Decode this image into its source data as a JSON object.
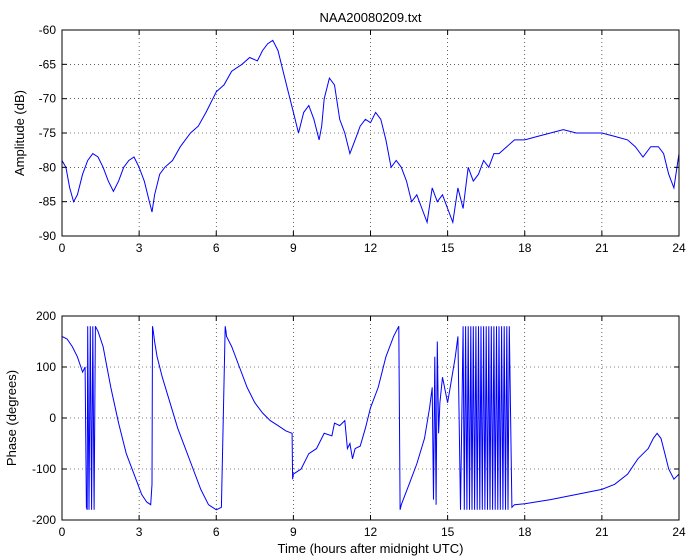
{
  "figure": {
    "title": "NAA20080209.txt"
  },
  "chart_data": [
    {
      "type": "line",
      "title": "NAA20080209.txt",
      "xlabel": "",
      "ylabel": "Amplitude (dB)",
      "xlim": [
        0,
        24
      ],
      "ylim": [
        -90,
        -60
      ],
      "xticks": [
        0,
        3,
        6,
        9,
        12,
        15,
        18,
        21,
        24
      ],
      "yticks": [
        -90,
        -85,
        -80,
        -75,
        -70,
        -65,
        -60
      ],
      "grid": true,
      "line_color": "#0000ff",
      "series": [
        {
          "x": [
            0,
            0.15,
            0.3,
            0.45,
            0.6,
            0.8,
            1.0,
            1.2,
            1.4,
            1.6,
            1.8,
            2.0,
            2.2,
            2.4,
            2.6,
            2.8,
            3.0,
            3.2,
            3.4,
            3.5,
            3.6,
            3.8,
            4.0,
            4.3,
            4.6,
            5.0,
            5.3,
            5.6,
            6.0,
            6.3,
            6.6,
            7.0,
            7.3,
            7.6,
            7.8,
            8.0,
            8.2,
            8.4,
            8.6,
            8.8,
            9.0,
            9.2,
            9.4,
            9.6,
            9.8,
            10.0,
            10.1,
            10.2,
            10.4,
            10.6,
            10.8,
            11.0,
            11.2,
            11.4,
            11.6,
            11.8,
            12.0,
            12.2,
            12.4,
            12.6,
            12.8,
            13.0,
            13.2,
            13.4,
            13.6,
            13.8,
            14.0,
            14.2,
            14.4,
            14.6,
            14.8,
            15.0,
            15.2,
            15.4,
            15.6,
            15.8,
            16.0,
            16.2,
            16.4,
            16.6,
            16.8,
            17.0,
            17.3,
            17.6,
            18.0,
            18.5,
            19.0,
            19.5,
            20.0,
            20.5,
            21.0,
            21.5,
            22.0,
            22.3,
            22.6,
            22.9,
            23.2,
            23.4,
            23.6,
            23.8,
            24.0
          ],
          "y": [
            -79,
            -80,
            -83,
            -85,
            -84,
            -81,
            -79,
            -78,
            -78.5,
            -80,
            -82,
            -83.5,
            -82,
            -80,
            -79,
            -78.5,
            -80,
            -82,
            -85,
            -86.5,
            -84,
            -81,
            -80,
            -79,
            -77,
            -75,
            -74,
            -72,
            -69,
            -68,
            -66,
            -65,
            -64,
            -64.5,
            -63,
            -62,
            -61.5,
            -63,
            -66,
            -69,
            -72,
            -75,
            -72,
            -71,
            -73,
            -76,
            -74,
            -70,
            -67,
            -68,
            -73,
            -75,
            -78,
            -76,
            -74,
            -73,
            -73.5,
            -72,
            -73,
            -76,
            -80,
            -79,
            -80,
            -82,
            -85,
            -84,
            -86,
            -88,
            -83,
            -85,
            -84,
            -86,
            -88,
            -83,
            -86,
            -80,
            -82,
            -81,
            -79,
            -80,
            -78,
            -78,
            -77,
            -76,
            -76,
            -75.5,
            -75,
            -74.5,
            -75,
            -75,
            -75,
            -75.5,
            -76,
            -77,
            -78.5,
            -77,
            -77,
            -78,
            -81,
            -83,
            -78
          ]
        }
      ]
    },
    {
      "type": "line",
      "title": "",
      "xlabel": "Time (hours after midnight UTC)",
      "ylabel": "Phase (degrees)",
      "xlim": [
        0,
        24
      ],
      "ylim": [
        -200,
        200
      ],
      "xticks": [
        0,
        3,
        6,
        9,
        12,
        15,
        18,
        21,
        24
      ],
      "yticks": [
        -200,
        -100,
        0,
        100,
        200
      ],
      "grid": true,
      "line_color": "#0000ff",
      "series": [
        {
          "x": [
            0,
            0.2,
            0.4,
            0.6,
            0.8,
            0.9,
            0.95,
            0.98,
            1.0,
            1.05,
            1.1,
            1.15,
            1.2,
            1.25,
            1.3,
            1.35,
            1.4,
            1.6,
            1.9,
            2.2,
            2.5,
            2.8,
            3.1,
            3.3,
            3.45,
            3.5,
            3.52,
            3.55,
            3.6,
            3.7,
            3.9,
            4.2,
            4.5,
            4.8,
            5.1,
            5.4,
            5.7,
            6.0,
            6.2,
            6.35,
            6.38,
            6.4,
            6.6,
            6.9,
            7.2,
            7.5,
            7.8,
            8.1,
            8.4,
            8.7,
            8.95,
            8.97,
            9.0,
            9.3,
            9.6,
            9.9,
            10.2,
            10.5,
            10.6,
            10.8,
            11.0,
            11.1,
            11.2,
            11.3,
            11.4,
            11.6,
            11.8,
            12.0,
            12.3,
            12.6,
            12.9,
            13.1,
            13.15,
            13.2,
            13.5,
            13.8,
            14.1,
            14.3,
            14.4,
            14.45,
            14.5,
            14.55,
            14.6,
            14.65,
            14.7,
            14.8,
            15.0,
            15.1,
            15.3,
            15.4,
            15.5,
            15.6,
            15.65,
            15.7,
            15.75,
            15.8,
            15.85,
            15.9,
            15.95,
            16.0,
            16.05,
            16.1,
            16.15,
            16.2,
            16.25,
            16.3,
            16.35,
            16.4,
            16.45,
            16.5,
            16.55,
            16.6,
            16.65,
            16.7,
            16.75,
            16.8,
            16.85,
            16.9,
            16.95,
            17.0,
            17.05,
            17.1,
            17.15,
            17.2,
            17.25,
            17.3,
            17.35,
            17.4,
            17.5,
            17.6,
            18.0,
            19.0,
            20.0,
            21.0,
            21.5,
            22.0,
            22.4,
            22.8,
            23.0,
            23.15,
            23.3,
            23.45,
            23.6,
            23.8,
            24.0
          ],
          "y": [
            160,
            155,
            140,
            120,
            90,
            100,
            -175,
            -180,
            180,
            -180,
            180,
            -180,
            180,
            -180,
            180,
            175,
            170,
            140,
            60,
            -10,
            -70,
            -110,
            -150,
            -165,
            -170,
            -130,
            180,
            170,
            150,
            120,
            80,
            30,
            -20,
            -60,
            -100,
            -140,
            -170,
            -180,
            -175,
            180,
            170,
            160,
            140,
            100,
            60,
            30,
            10,
            -5,
            -15,
            -25,
            -30,
            -120,
            -110,
            -100,
            -70,
            -60,
            -30,
            -35,
            -10,
            -15,
            -5,
            -60,
            -50,
            -80,
            -60,
            -55,
            -20,
            20,
            60,
            120,
            160,
            180,
            -180,
            -170,
            -130,
            -90,
            -40,
            20,
            60,
            -160,
            120,
            -170,
            150,
            -30,
            30,
            80,
            30,
            60,
            120,
            160,
            -180,
            180,
            -180,
            180,
            -180,
            180,
            -180,
            180,
            -180,
            180,
            -180,
            180,
            -180,
            180,
            -180,
            180,
            -180,
            180,
            -180,
            180,
            -180,
            180,
            -180,
            180,
            -180,
            180,
            -180,
            180,
            -180,
            180,
            -180,
            180,
            -180,
            180,
            -180,
            180,
            -180,
            180,
            -175,
            -170,
            -168,
            -160,
            -150,
            -140,
            -130,
            -110,
            -80,
            -60,
            -40,
            -30,
            -40,
            -70,
            -100,
            -120,
            -110
          ]
        }
      ]
    }
  ]
}
